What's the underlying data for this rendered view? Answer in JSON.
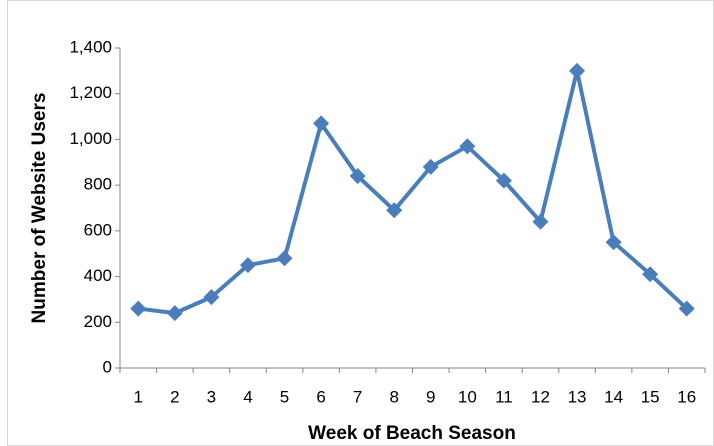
{
  "chart_data": {
    "type": "line",
    "x_label": "Week of Beach Season",
    "y_label": "Number of Website Users",
    "categories": [
      "1",
      "2",
      "3",
      "4",
      "5",
      "6",
      "7",
      "8",
      "9",
      "10",
      "11",
      "12",
      "13",
      "14",
      "15",
      "16"
    ],
    "values": [
      260,
      240,
      310,
      450,
      480,
      1070,
      840,
      690,
      880,
      970,
      820,
      640,
      1300,
      550,
      410,
      260
    ],
    "color": "#4a7ebb",
    "ylim": [
      0,
      1400
    ],
    "yticks": [
      0,
      200,
      400,
      600,
      800,
      {
        "value": 1000,
        "label": "1,000"
      },
      {
        "value": 1200,
        "label": "1,200"
      },
      {
        "value": 1400,
        "label": "1,400"
      }
    ],
    "grid": false
  }
}
